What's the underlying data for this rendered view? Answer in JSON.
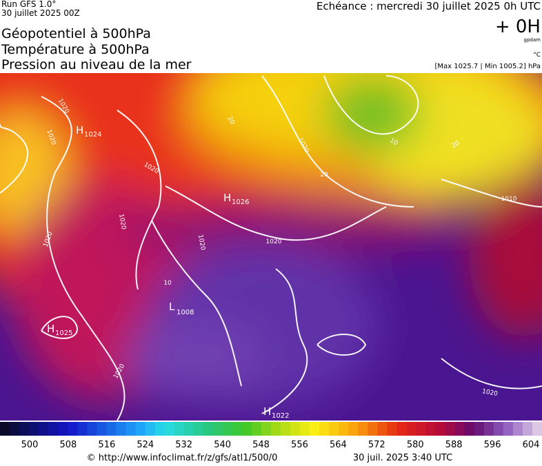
{
  "header": {
    "run": "Run GFS 1.0°",
    "date": "30 juillet 2025 00Z",
    "echeance": "Echéance : mercredi 30 juillet 2025 0h UTC",
    "titles": [
      "Géopotentiel à 500hPa",
      "Température à 500hPa",
      "Pression au niveau de la mer"
    ],
    "lead": "+ 0H",
    "unit_geo": "gpdam",
    "unit_temp": "°C",
    "range": "[Max 1025.7 | Min 1005.2] hPa"
  },
  "map": {
    "highs": [
      {
        "letter": "H",
        "value": "1024"
      },
      {
        "letter": "H",
        "value": "1026"
      },
      {
        "letter": "H",
        "value": "1025"
      },
      {
        "letter": "H",
        "value": "1022"
      }
    ],
    "lows": [
      {
        "letter": "L",
        "value": "1008"
      }
    ],
    "contour_labels": [
      "1020",
      "1020",
      "1020",
      "1020",
      "1020",
      "1020",
      "1020",
      "1020",
      "1020",
      "1020",
      "1010",
      "10",
      "20",
      "20",
      "20",
      "10"
    ]
  },
  "colorbar": {
    "labels": [
      500,
      508,
      516,
      524,
      532,
      540,
      548,
      556,
      564,
      572,
      580,
      588,
      596,
      604
    ]
  },
  "footer": {
    "url": "© http://www.infoclimat.fr/z/gfs/atl1/500/0",
    "timestamp": "30 juil. 2025  3:40 UTC"
  }
}
